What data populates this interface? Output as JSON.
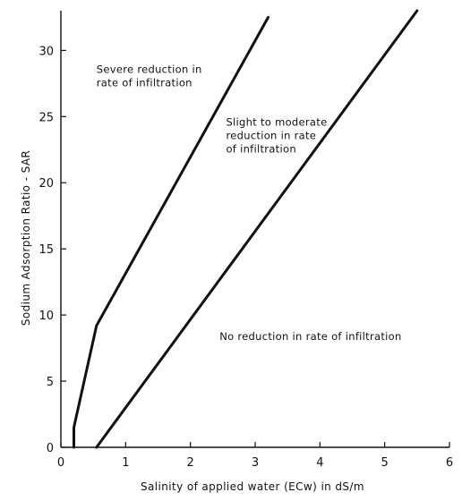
{
  "chart_data": {
    "type": "line",
    "title": "",
    "xlabel": "Salinity of applied water (ECw) in dS/m",
    "ylabel": "Sodium Adsorption Ratio - SAR",
    "xlim": [
      0,
      6
    ],
    "ylim": [
      0,
      33
    ],
    "xticks": [
      0,
      1,
      2,
      3,
      4,
      5,
      6
    ],
    "yticks": [
      0,
      5,
      10,
      15,
      20,
      25,
      30
    ],
    "grid": false,
    "series": [
      {
        "points": [
          [
            0.2,
            0
          ],
          [
            0.2,
            1.5
          ],
          [
            0.55,
            9.2
          ],
          [
            3.2,
            32.5
          ]
        ]
      },
      {
        "points": [
          [
            0.55,
            0
          ],
          [
            5.5,
            33
          ]
        ]
      }
    ],
    "region_labels": [
      {
        "lines": [
          "Severe reduction in",
          "rate of infiltration"
        ],
        "anchor": [
          0.55,
          28.3
        ]
      },
      {
        "lines": [
          "Slight to moderate",
          "reduction in rate",
          "of infiltration"
        ],
        "anchor": [
          2.55,
          24.3
        ]
      },
      {
        "lines": [
          "No reduction in rate of infiltration"
        ],
        "anchor": [
          2.45,
          8.1
        ]
      }
    ]
  }
}
